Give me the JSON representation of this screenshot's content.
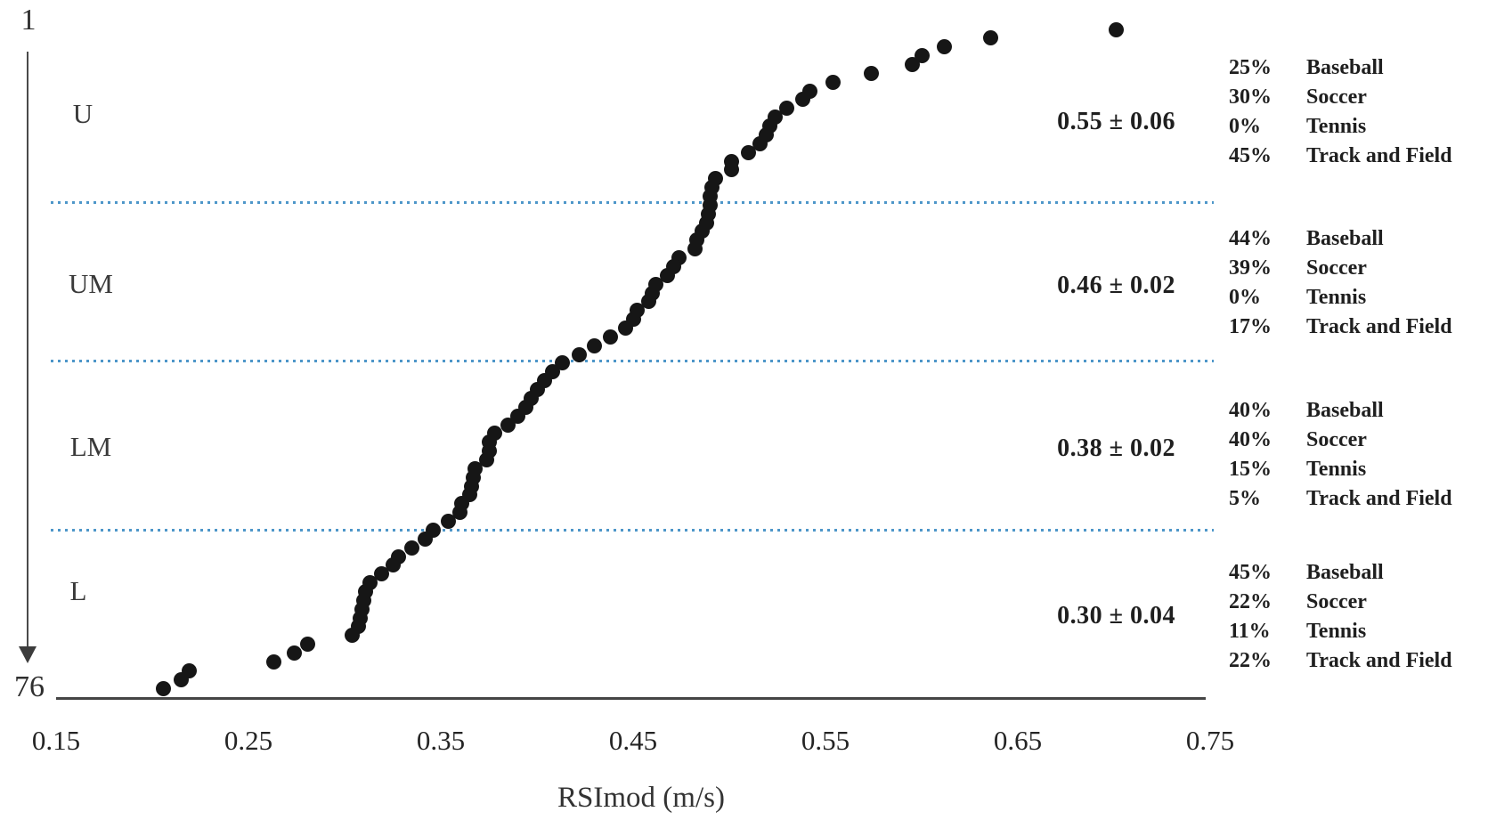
{
  "figure": {
    "rank_top": "1",
    "rank_bottom": "76",
    "xlabel": "RSImod (m/s)"
  },
  "chart_data": {
    "type": "scatter",
    "title": "",
    "xlabel": "RSImod (m/s)",
    "ylabel": "",
    "x_ticks": [
      "0.15",
      "0.25",
      "0.35",
      "0.45",
      "0.55",
      "0.65",
      "0.75"
    ],
    "xlim": [
      0.15,
      0.75
    ],
    "rank_range": [
      1,
      76
    ],
    "grid": false,
    "legend": false,
    "values_sorted_desc": [
      0.701,
      0.636,
      0.612,
      0.6,
      0.595,
      0.574,
      0.554,
      0.542,
      0.538,
      0.53,
      0.524,
      0.521,
      0.519,
      0.516,
      0.51,
      0.501,
      0.501,
      0.493,
      0.491,
      0.49,
      0.49,
      0.489,
      0.488,
      0.486,
      0.483,
      0.482,
      0.474,
      0.471,
      0.468,
      0.462,
      0.46,
      0.458,
      0.452,
      0.45,
      0.446,
      0.438,
      0.43,
      0.422,
      0.413,
      0.408,
      0.404,
      0.4,
      0.397,
      0.394,
      0.39,
      0.385,
      0.378,
      0.375,
      0.375,
      0.374,
      0.368,
      0.367,
      0.366,
      0.365,
      0.361,
      0.36,
      0.354,
      0.346,
      0.342,
      0.335,
      0.328,
      0.325,
      0.319,
      0.313,
      0.311,
      0.31,
      0.309,
      0.308,
      0.307,
      0.304,
      0.281,
      0.274,
      0.263,
      0.219,
      0.215,
      0.206
    ],
    "quartiles": [
      {
        "label": "U",
        "mean_sd": "0.55 ± 0.06",
        "composition": [
          {
            "pct": "25%",
            "sport": "Baseball"
          },
          {
            "pct": "30%",
            "sport": "Soccer"
          },
          {
            "pct": "0%",
            "sport": "Tennis"
          },
          {
            "pct": "45%",
            "sport": "Track and Field"
          }
        ]
      },
      {
        "label": "UM",
        "mean_sd": "0.46 ± 0.02",
        "composition": [
          {
            "pct": "44%",
            "sport": "Baseball"
          },
          {
            "pct": "39%",
            "sport": "Soccer"
          },
          {
            "pct": "0%",
            "sport": "Tennis"
          },
          {
            "pct": "17%",
            "sport": "Track and Field"
          }
        ]
      },
      {
        "label": "LM",
        "mean_sd": "0.38 ± 0.02",
        "composition": [
          {
            "pct": "40%",
            "sport": "Baseball"
          },
          {
            "pct": "40%",
            "sport": "Soccer"
          },
          {
            "pct": "15%",
            "sport": "Tennis"
          },
          {
            "pct": "5%",
            "sport": "Track and Field"
          }
        ]
      },
      {
        "label": "L",
        "mean_sd": "0.30 ± 0.04",
        "composition": [
          {
            "pct": "45%",
            "sport": "Baseball"
          },
          {
            "pct": "22%",
            "sport": "Soccer"
          },
          {
            "pct": "11%",
            "sport": "Tennis"
          },
          {
            "pct": "22%",
            "sport": "Track and Field"
          }
        ]
      }
    ],
    "colors": {
      "dot": "#161616",
      "divider": "#4d96c9",
      "axis": "#454545",
      "text": "#2e2e2e"
    }
  }
}
